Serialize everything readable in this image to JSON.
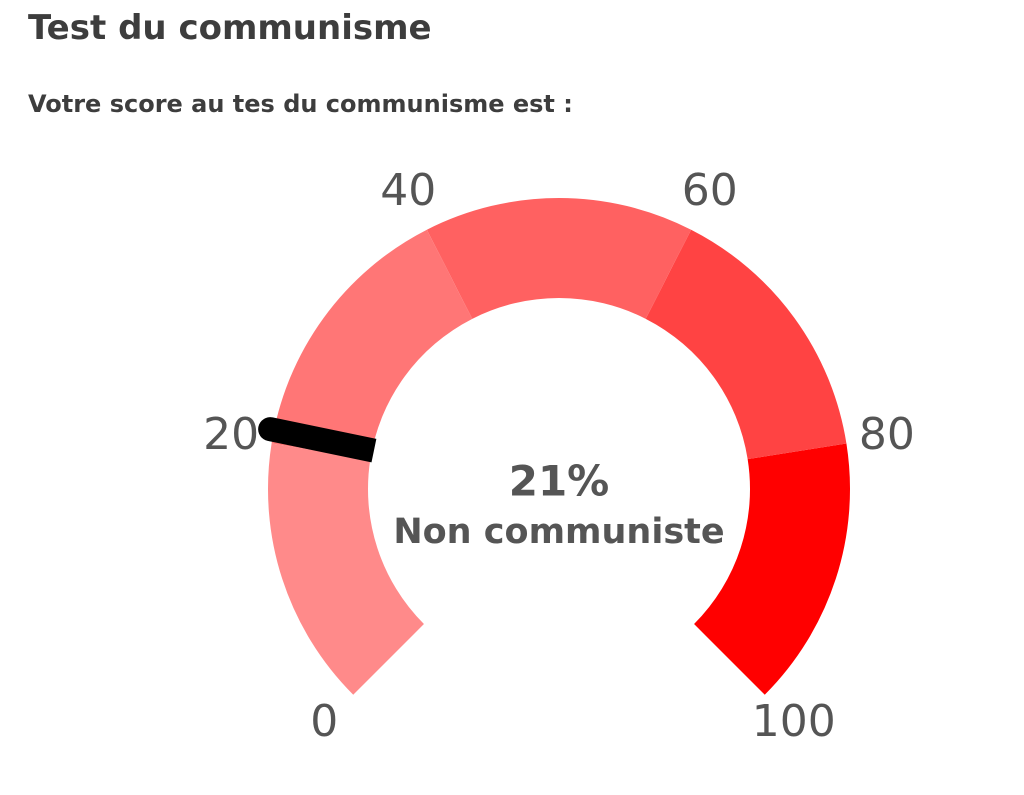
{
  "title": "Test du communisme",
  "subtitle": "Votre score au tes du communisme est :",
  "chart_data": {
    "type": "gauge",
    "ylim": [
      0,
      100
    ],
    "yticks": [
      0,
      20,
      40,
      60,
      80,
      100
    ],
    "bands": [
      {
        "from": 0,
        "to": 20,
        "color": "#ff8a8a"
      },
      {
        "from": 20,
        "to": 40,
        "color": "#ff7676"
      },
      {
        "from": 40,
        "to": 60,
        "color": "#ff6161"
      },
      {
        "from": 60,
        "to": 80,
        "color": "#ff4343"
      },
      {
        "from": 80,
        "to": 100,
        "color": "#ff0000"
      }
    ],
    "value": 21,
    "value_label": "21%",
    "label": "Non communiste",
    "needle_color": "#000000"
  }
}
